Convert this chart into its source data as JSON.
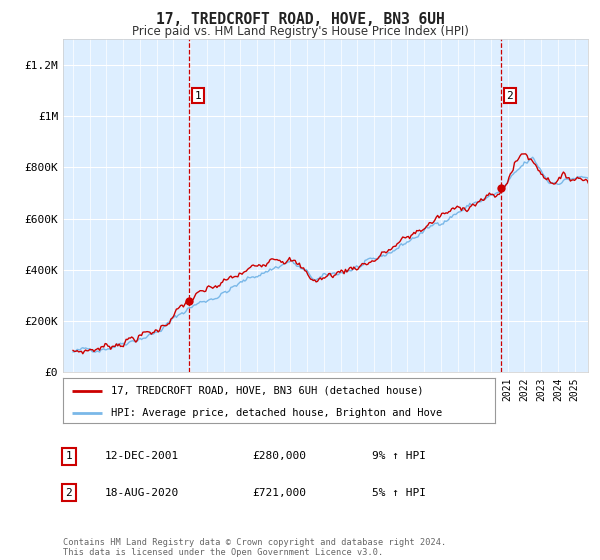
{
  "title": "17, TREDCROFT ROAD, HOVE, BN3 6UH",
  "subtitle": "Price paid vs. HM Land Registry's House Price Index (HPI)",
  "legend_line1": "17, TREDCROFT ROAD, HOVE, BN3 6UH (detached house)",
  "legend_line2": "HPI: Average price, detached house, Brighton and Hove",
  "annotation1_label": "1",
  "annotation1_date": "12-DEC-2001",
  "annotation1_price": "£280,000",
  "annotation1_hpi": "9% ↑ HPI",
  "annotation2_label": "2",
  "annotation2_date": "18-AUG-2020",
  "annotation2_price": "£721,000",
  "annotation2_hpi": "5% ↑ HPI",
  "footnote": "Contains HM Land Registry data © Crown copyright and database right 2024.\nThis data is licensed under the Open Government Licence v3.0.",
  "hpi_color": "#7ab8e8",
  "price_color": "#cc0000",
  "annotation_color": "#cc0000",
  "bg_color": "#ffffff",
  "plot_bg_color": "#ddeeff",
  "ylim": [
    0,
    1300000
  ],
  "yticks": [
    0,
    200000,
    400000,
    600000,
    800000,
    1000000,
    1200000
  ],
  "ytick_labels": [
    "£0",
    "£200K",
    "£400K",
    "£600K",
    "£800K",
    "£1M",
    "£1.2M"
  ],
  "xstart_year": 1995,
  "xend_year": 2025,
  "sale1_t": 2001.958,
  "sale1_v": 280000,
  "sale2_t": 2020.625,
  "sale2_v": 721000
}
